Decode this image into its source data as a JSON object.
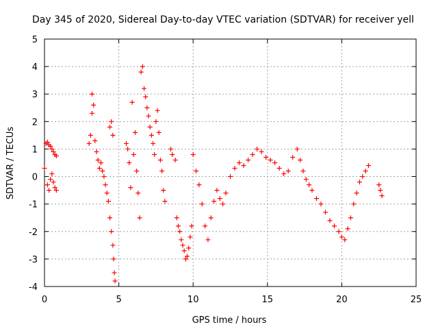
{
  "chart_data": {
    "type": "scatter",
    "title": "Day 345 of 2020, Sidereal Day-to-day VTEC variation (SDTVAR) for receiver yell",
    "xlabel": "GPS time / hours",
    "ylabel": "SDTVAR / TECUs",
    "xlim": [
      0,
      25
    ],
    "ylim": [
      -4,
      5
    ],
    "xticks": [
      "0",
      "5",
      "10",
      "15",
      "20",
      "25"
    ],
    "yticks": [
      "-4",
      "-3",
      "-2",
      "-1",
      "0",
      "1",
      "2",
      "3",
      "4",
      "5"
    ],
    "grid": true,
    "marker": "+",
    "color": "#ff0000",
    "x": [
      0.0,
      0.1,
      0.2,
      0.3,
      0.4,
      0.5,
      0.6,
      0.7,
      0.8,
      0.2,
      0.3,
      0.4,
      0.5,
      0.6,
      0.7,
      0.8,
      3.0,
      3.1,
      3.2,
      3.3,
      3.4,
      3.2,
      3.5,
      3.6,
      3.7,
      3.8,
      3.9,
      4.0,
      4.1,
      4.2,
      4.3,
      4.4,
      4.5,
      4.6,
      4.65,
      4.7,
      4.75,
      4.4,
      4.5,
      4.6,
      5.5,
      5.6,
      5.7,
      5.8,
      5.9,
      6.0,
      6.1,
      6.2,
      6.3,
      6.4,
      6.5,
      6.6,
      6.7,
      6.8,
      6.9,
      7.0,
      7.1,
      7.2,
      7.3,
      7.4,
      7.5,
      7.6,
      7.7,
      7.8,
      7.9,
      8.0,
      8.1,
      8.5,
      8.6,
      8.8,
      8.9,
      9.0,
      9.1,
      9.2,
      9.3,
      9.4,
      9.5,
      9.6,
      9.7,
      9.8,
      9.9,
      10.0,
      10.2,
      10.4,
      10.6,
      10.8,
      11.0,
      11.2,
      11.4,
      11.6,
      11.8,
      12.0,
      12.2,
      12.5,
      12.8,
      13.1,
      13.4,
      13.7,
      14.0,
      14.3,
      14.6,
      14.9,
      15.2,
      15.5,
      15.8,
      16.1,
      16.4,
      16.7,
      17.0,
      17.2,
      17.4,
      17.6,
      17.8,
      18.0,
      18.3,
      18.6,
      18.9,
      19.2,
      19.5,
      19.8,
      20.0,
      20.2,
      20.4,
      20.6,
      20.8,
      21.0,
      21.2,
      21.4,
      21.6,
      21.8,
      22.5,
      22.6,
      22.7
    ],
    "y": [
      0.3,
      1.2,
      1.25,
      1.15,
      1.1,
      1.0,
      0.9,
      0.8,
      0.75,
      -0.3,
      -0.5,
      -0.1,
      0.1,
      -0.2,
      -0.4,
      -0.5,
      1.2,
      1.5,
      2.3,
      2.6,
      1.3,
      3.0,
      0.9,
      0.6,
      0.3,
      0.5,
      0.2,
      0.0,
      -0.3,
      -0.6,
      -0.9,
      -1.5,
      -2.0,
      -2.5,
      -3.0,
      -3.5,
      -3.8,
      1.8,
      2.0,
      1.5,
      1.2,
      1.0,
      0.5,
      -0.4,
      2.7,
      0.8,
      1.6,
      0.2,
      -0.6,
      -1.5,
      3.8,
      4.0,
      3.2,
      2.9,
      2.5,
      2.2,
      1.8,
      1.5,
      1.2,
      0.8,
      2.0,
      2.4,
      1.6,
      0.6,
      0.2,
      -0.5,
      -0.9,
      1.0,
      0.8,
      0.6,
      -1.5,
      -1.8,
      -2.0,
      -2.3,
      -2.5,
      -2.7,
      -3.0,
      -2.9,
      -2.6,
      -2.2,
      -1.8,
      0.8,
      0.2,
      -0.3,
      -1.0,
      -1.8,
      -2.3,
      -1.5,
      -0.9,
      -0.5,
      -0.8,
      -1.0,
      -0.6,
      0.0,
      0.3,
      0.5,
      0.4,
      0.6,
      0.8,
      1.0,
      0.9,
      0.7,
      0.6,
      0.5,
      0.3,
      0.1,
      0.2,
      0.7,
      1.0,
      0.6,
      0.2,
      -0.1,
      -0.3,
      -0.5,
      -0.8,
      -1.0,
      -1.3,
      -1.6,
      -1.8,
      -2.0,
      -2.2,
      -2.3,
      -1.9,
      -1.5,
      -1.0,
      -0.6,
      -0.2,
      0.0,
      0.2,
      0.4,
      -0.3,
      -0.5,
      -0.7
    ]
  }
}
